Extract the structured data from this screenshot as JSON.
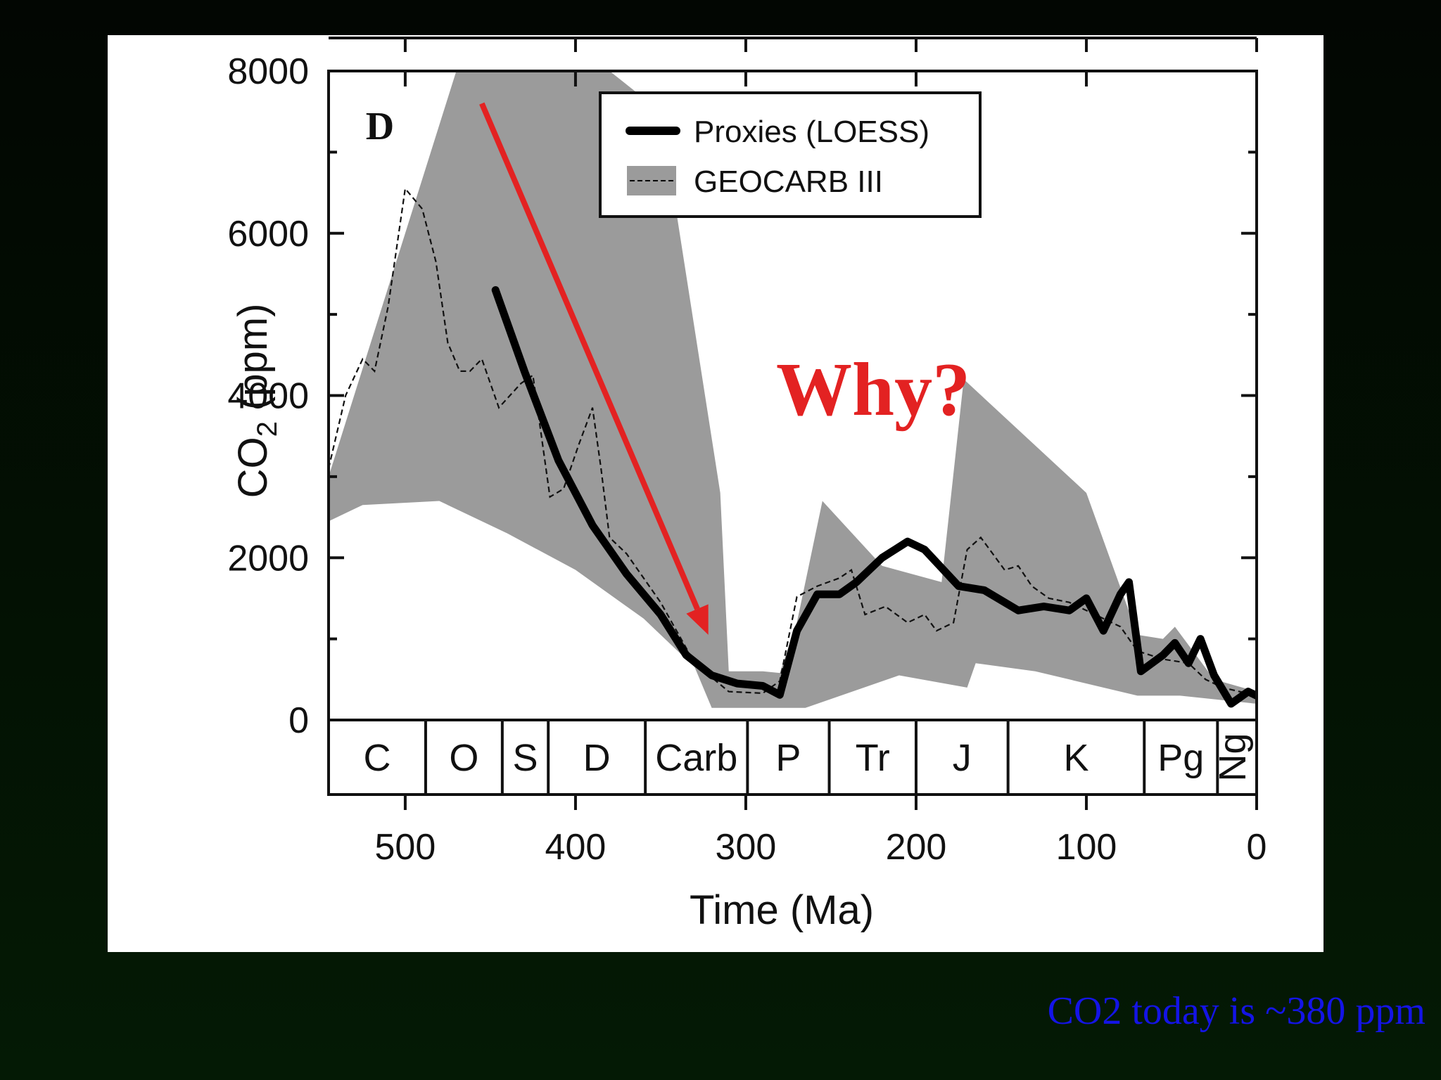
{
  "chart_data": {
    "type": "line",
    "panel_label": "D",
    "xlabel": "Time (Ma)",
    "ylabel_main": "CO",
    "ylabel_sub": "2",
    "ylabel_units": " (ppm)",
    "xlim": [
      545,
      0
    ],
    "ylim": [
      0,
      8000
    ],
    "x_ticks": [
      500,
      400,
      300,
      200,
      100,
      0
    ],
    "y_ticks": [
      0,
      2000,
      4000,
      6000,
      8000
    ],
    "series": [
      {
        "name": "Proxies (LOESS)",
        "style": "thick-solid",
        "x": [
          447,
          430,
          410,
          390,
          370,
          350,
          335,
          320,
          305,
          290,
          280,
          270,
          258,
          245,
          235,
          220,
          205,
          195,
          175,
          160,
          140,
          125,
          110,
          100,
          90,
          80,
          75,
          68,
          55,
          48,
          40,
          33,
          25,
          15,
          5,
          0
        ],
        "y": [
          5300,
          4300,
          3200,
          2400,
          1800,
          1300,
          800,
          550,
          450,
          420,
          310,
          1100,
          1550,
          1550,
          1700,
          2000,
          2200,
          2100,
          1650,
          1600,
          1350,
          1400,
          1350,
          1500,
          1100,
          1550,
          1700,
          600,
          800,
          950,
          700,
          1000,
          550,
          200,
          350,
          300
        ]
      },
      {
        "name": "GEOCARB III",
        "style": "dashed",
        "x": [
          545,
          535,
          525,
          518,
          510,
          500,
          490,
          482,
          475,
          468,
          462,
          455,
          445,
          432,
          425,
          415,
          407,
          398,
          390,
          385,
          380,
          370,
          350,
          330,
          310,
          290,
          280,
          270,
          258,
          245,
          238,
          230,
          218,
          205,
          195,
          188,
          178,
          170,
          162,
          155,
          148,
          140,
          132,
          122,
          110,
          95,
          80,
          70,
          55,
          40,
          30,
          20,
          10,
          0
        ],
        "y": [
          3100,
          4000,
          4450,
          4300,
          5100,
          6550,
          6300,
          5650,
          4650,
          4300,
          4300,
          4450,
          3850,
          4150,
          4250,
          2750,
          2850,
          3400,
          3850,
          3100,
          2250,
          2050,
          1450,
          700,
          350,
          330,
          480,
          1520,
          1650,
          1750,
          1850,
          1300,
          1400,
          1200,
          1300,
          1100,
          1200,
          2100,
          2250,
          2050,
          1850,
          1900,
          1650,
          1500,
          1450,
          1300,
          1150,
          850,
          750,
          700,
          500,
          400,
          350,
          300
        ]
      }
    ],
    "uncertainty_band": {
      "x_upper": [
        545,
        470,
        460,
        440,
        410,
        380,
        350,
        315,
        310,
        290,
        280,
        270,
        255,
        220,
        185,
        172,
        100,
        70,
        55,
        48,
        25,
        0
      ],
      "y_upper": [
        3000,
        8000,
        8000,
        8000,
        8000,
        8000,
        7500,
        2800,
        600,
        600,
        580,
        1200,
        2700,
        1900,
        1700,
        4200,
        2800,
        1050,
        1000,
        1150,
        500,
        350
      ],
      "x_lower": [
        545,
        525,
        480,
        440,
        400,
        360,
        330,
        320,
        295,
        265,
        210,
        170,
        165,
        130,
        70,
        45,
        0
      ],
      "y_lower": [
        2450,
        2650,
        2700,
        2300,
        1850,
        1250,
        650,
        150,
        150,
        150,
        550,
        400,
        700,
        600,
        300,
        300,
        200
      ]
    },
    "geologic_periods": [
      {
        "label": "C",
        "start": 545,
        "end": 488
      },
      {
        "label": "O",
        "start": 488,
        "end": 443
      },
      {
        "label": "S",
        "start": 443,
        "end": 416
      },
      {
        "label": "D",
        "start": 416,
        "end": 359
      },
      {
        "label": "Carb",
        "start": 359,
        "end": 299
      },
      {
        "label": "P",
        "start": 299,
        "end": 251
      },
      {
        "label": "Tr",
        "start": 251,
        "end": 200
      },
      {
        "label": "J",
        "start": 200,
        "end": 146
      },
      {
        "label": "K",
        "start": 146,
        "end": 66
      },
      {
        "label": "Pg",
        "start": 66,
        "end": 23
      },
      {
        "label": "Ng",
        "start": 23,
        "end": 0,
        "rotated": true
      }
    ],
    "legend": {
      "placement": "top-right",
      "entries": [
        "Proxies (LOESS)",
        "GEOCARB III"
      ]
    },
    "annotations": [
      {
        "text": "Why?",
        "color": "#e32222"
      }
    ],
    "arrow": {
      "color": "#e32222",
      "from": {
        "x": 455,
        "y": 7600
      },
      "to": {
        "x": 322,
        "y": 1050
      }
    }
  },
  "footnote": "CO2 today is ~380 ppm"
}
